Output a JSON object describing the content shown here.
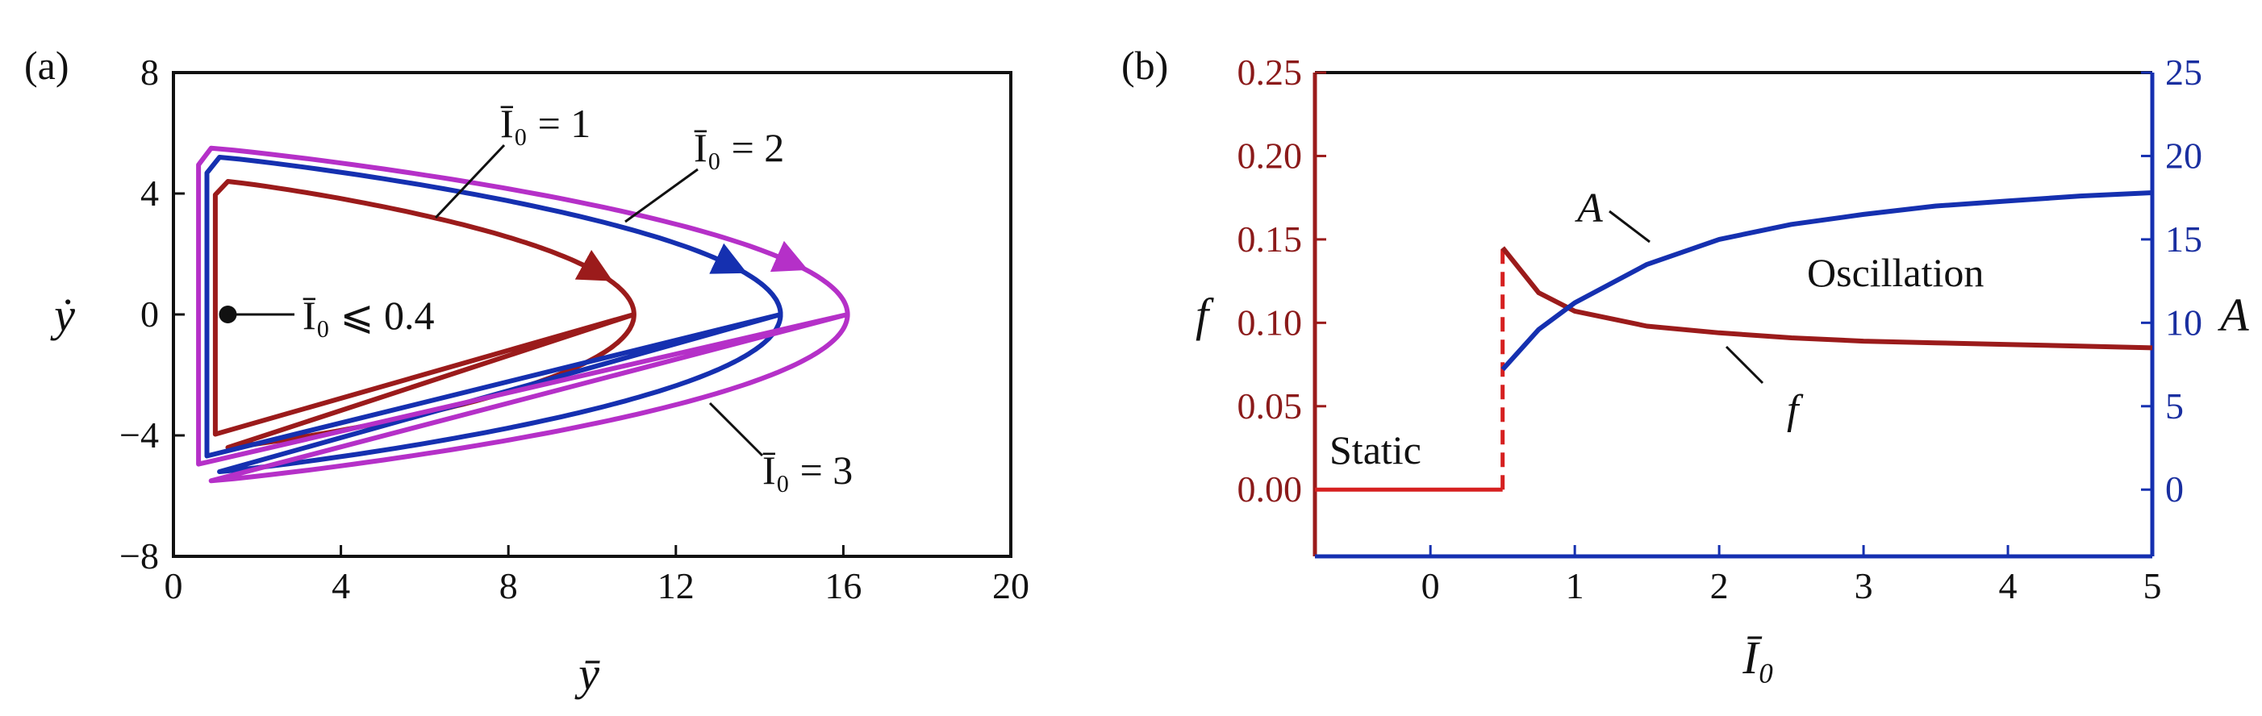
{
  "colors": {
    "red": "#9b1b1b",
    "red_dashed": "#d62020",
    "blue": "#1530b0",
    "purple": "#b530c8",
    "black": "#111111"
  },
  "panel_a": {
    "label": "(a)",
    "xlabel": "ȳ",
    "ylabel": "ẏ",
    "xticks": [
      "0",
      "4",
      "8",
      "12",
      "16",
      "20"
    ],
    "yticks": [
      "8",
      "4",
      "0",
      "−4",
      "−8"
    ],
    "annotations": {
      "i1": "Ī₀ = 1",
      "i2": "Ī₀ = 2",
      "i3": "Ī₀ = 3",
      "fixed_point": "Ī₀ ⩽ 0.4"
    }
  },
  "panel_b": {
    "label": "(b)",
    "xlabel": "Ī₀",
    "ylabel_left": "f",
    "ylabel_right": "A",
    "xticks": [
      "0",
      "1",
      "2",
      "3",
      "4",
      "5"
    ],
    "yticks_left": [
      "0.25",
      "0.20",
      "0.15",
      "0.10",
      "0.05",
      "0.00"
    ],
    "yticks_right": [
      "25",
      "20",
      "15",
      "10",
      "5",
      "0"
    ],
    "annotations": {
      "static": "Static",
      "oscillation": "Oscillation",
      "A_curve": "A",
      "f_curve": "f"
    }
  },
  "chart_data": [
    {
      "type": "line",
      "xlim": [
        0,
        20
      ],
      "ylim": [
        -8,
        8
      ],
      "grid": false,
      "series": [
        {
          "color": "#9b1b1b",
          "label": "Ī₀ = 1",
          "x_max": 11,
          "y_amplitude": 4.4,
          "x_min": 1.3
        },
        {
          "color": "#1530b0",
          "label": "Ī₀ = 2",
          "x_max": 14.5,
          "y_amplitude": 5.2,
          "x_min": 1.1
        },
        {
          "color": "#b530c8",
          "label": "Ī₀ = 3",
          "x_max": 16.1,
          "y_amplitude": 5.5,
          "x_min": 0.9
        }
      ],
      "points": [
        {
          "x": 1.3,
          "y": 0,
          "label": "Ī₀ ⩽ 0.4"
        }
      ]
    },
    {
      "type": "line",
      "xlim": [
        -0.8,
        5
      ],
      "ylim_left": [
        -0.04,
        0.25
      ],
      "ylim_right": [
        -4,
        25
      ],
      "grid": false,
      "series": [
        {
          "name": "f",
          "axis": "left",
          "color": "#9b1b1b",
          "x": [
            0.5,
            0.75,
            1,
            1.5,
            2,
            2.5,
            3,
            3.5,
            4,
            4.5,
            5
          ],
          "y": [
            0.145,
            0.118,
            0.107,
            0.098,
            0.094,
            0.091,
            0.089,
            0.088,
            0.087,
            0.086,
            0.085
          ]
        },
        {
          "name": "f (static)",
          "axis": "left",
          "color": "#d62020",
          "x": [
            -0.8,
            0.5
          ],
          "y": [
            0.0,
            0.0
          ]
        },
        {
          "name": "A",
          "axis": "right",
          "color": "#1530b0",
          "x": [
            0.5,
            0.75,
            1,
            1.5,
            2,
            2.5,
            3,
            3.5,
            4,
            4.5,
            5
          ],
          "y": [
            7.2,
            9.6,
            11.2,
            13.5,
            15.0,
            15.9,
            16.5,
            17.0,
            17.3,
            17.6,
            17.8
          ]
        }
      ]
    }
  ]
}
